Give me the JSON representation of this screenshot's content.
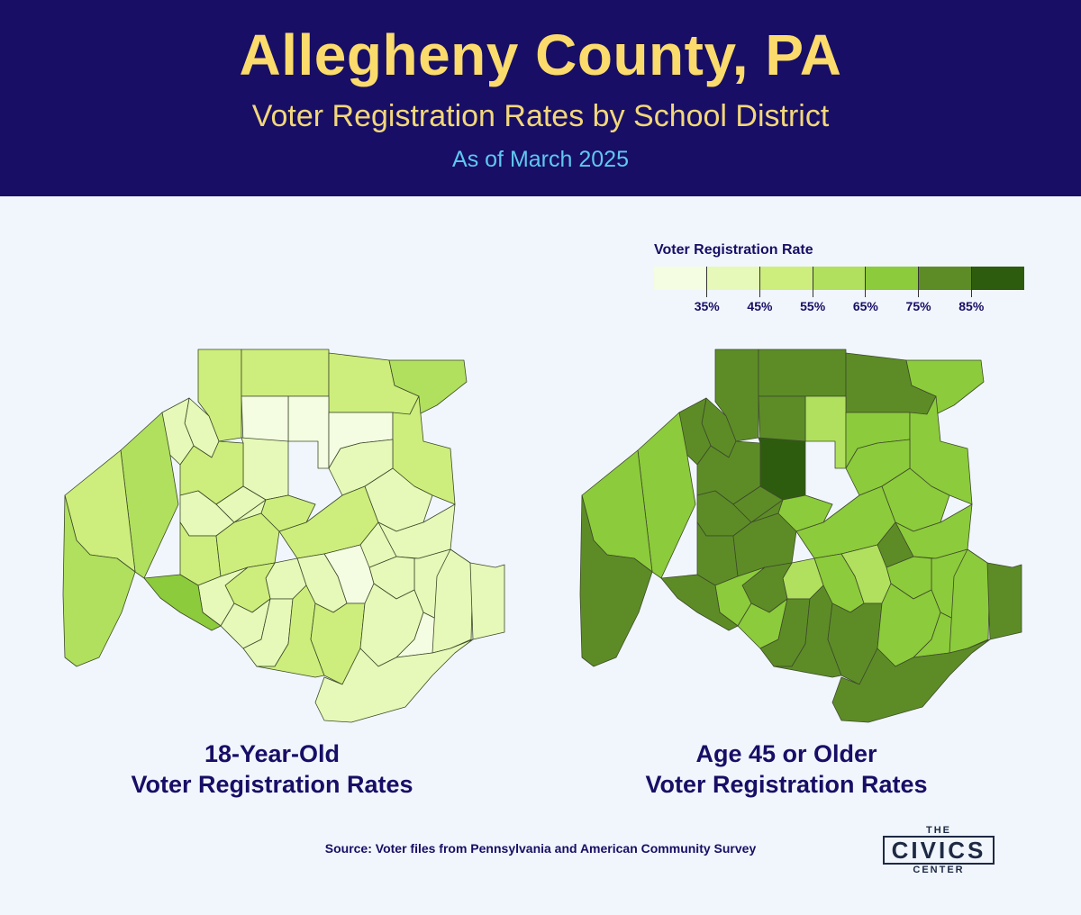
{
  "header": {
    "title": "Allegheny County, PA",
    "subtitle": "Voter Registration Rates by School District",
    "date": "As of March 2025"
  },
  "legend": {
    "title": "Voter Registration Rate",
    "colors": [
      "#f4fde2",
      "#e6f9b8",
      "#cdee7c",
      "#b0e05e",
      "#8ccb3b",
      "#5d8c27",
      "#2e5c0f"
    ],
    "labels": [
      "35%",
      "45%",
      "55%",
      "65%",
      "75%",
      "85%"
    ]
  },
  "maps": [
    {
      "caption_line1": "18-Year-Old",
      "caption_line2": "Voter Registration Rates",
      "rate_bin_by_district": [
        2,
        2,
        2,
        3,
        0,
        0,
        0,
        1,
        1,
        1,
        3,
        2,
        2,
        2,
        3,
        1,
        1,
        1,
        1,
        2,
        2,
        2,
        1,
        1,
        1,
        1,
        1,
        0,
        1,
        1,
        2,
        1,
        1,
        1,
        2,
        4,
        2,
        1,
        0,
        1,
        1,
        1,
        2,
        1
      ]
    },
    {
      "caption_line1": "Age 45 or Older",
      "caption_line2": "Voter Registration Rates",
      "rate_bin_by_district": [
        5,
        5,
        5,
        4,
        3,
        4,
        5,
        5,
        5,
        6,
        4,
        5,
        4,
        4,
        5,
        4,
        3,
        5,
        5,
        5,
        5,
        4,
        4,
        4,
        4,
        4,
        5,
        3,
        4,
        3,
        5,
        4,
        4,
        5,
        5,
        5,
        5,
        4,
        4,
        4,
        5,
        5,
        4,
        5
      ]
    }
  ],
  "source": "Source: Voter files from Pennsylvania and American Community Survey",
  "logo": {
    "top": "THE",
    "middle": "CIVICS",
    "bottom": "CENTER"
  }
}
